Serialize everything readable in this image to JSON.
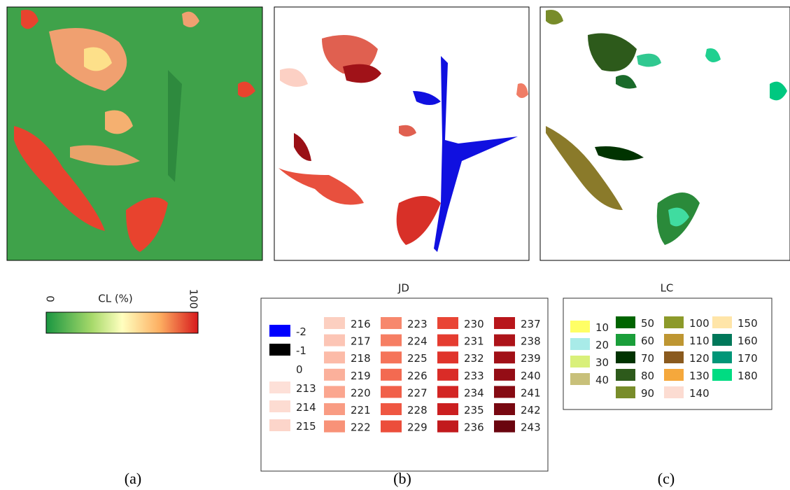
{
  "panels": [
    {
      "label": "(a)"
    },
    {
      "label": "(b)"
    },
    {
      "label": "(c)"
    }
  ],
  "cl_legend": {
    "title": "CL (%)",
    "min": 0,
    "max": 100
  },
  "jd_legend": {
    "title": "JD",
    "items": [
      {
        "label": -2,
        "color": "#0000ff"
      },
      {
        "label": -1,
        "color": "#000000"
      },
      {
        "label": 0,
        "color": "#ffffff"
      },
      {
        "label": 213,
        "color": "#fde0d8"
      },
      {
        "label": 214,
        "color": "#fddcd2"
      },
      {
        "label": 215,
        "color": "#fcd5ca"
      },
      {
        "label": 216,
        "color": "#fccfc0"
      },
      {
        "label": 217,
        "color": "#fcc5b5"
      },
      {
        "label": 218,
        "color": "#fcbba8"
      },
      {
        "label": 219,
        "color": "#fbb09b"
      },
      {
        "label": 220,
        "color": "#fba68f"
      },
      {
        "label": 221,
        "color": "#f99c83"
      },
      {
        "label": 222,
        "color": "#f89278"
      },
      {
        "label": 223,
        "color": "#f7886d"
      },
      {
        "label": 224,
        "color": "#f67e63"
      },
      {
        "label": 225,
        "color": "#f5745a"
      },
      {
        "label": 226,
        "color": "#f36a51"
      },
      {
        "label": 227,
        "color": "#f16049"
      },
      {
        "label": 228,
        "color": "#ef5742"
      },
      {
        "label": 229,
        "color": "#ec4e3b"
      },
      {
        "label": 230,
        "color": "#e94535"
      },
      {
        "label": 231,
        "color": "#e53c30"
      },
      {
        "label": 232,
        "color": "#e0342b"
      },
      {
        "label": 233,
        "color": "#da2c27"
      },
      {
        "label": 234,
        "color": "#d32523"
      },
      {
        "label": 235,
        "color": "#cb1f20"
      },
      {
        "label": 236,
        "color": "#c21a1d"
      },
      {
        "label": 237,
        "color": "#b8161b"
      },
      {
        "label": 238,
        "color": "#ad1319"
      },
      {
        "label": 239,
        "color": "#a11017"
      },
      {
        "label": 240,
        "color": "#940d15"
      },
      {
        "label": 241,
        "color": "#860b13"
      },
      {
        "label": 242,
        "color": "#780811"
      },
      {
        "label": 243,
        "color": "#6a050f"
      }
    ]
  },
  "lc_legend": {
    "title": "LC",
    "items": [
      {
        "label": 10,
        "color": "#ffff66"
      },
      {
        "label": 20,
        "color": "#a8ebe8"
      },
      {
        "label": 30,
        "color": "#d9f07a"
      },
      {
        "label": 40,
        "color": "#c8c07a"
      },
      {
        "label": 50,
        "color": "#006400"
      },
      {
        "label": 60,
        "color": "#1a9e3a"
      },
      {
        "label": 70,
        "color": "#003300"
      },
      {
        "label": 80,
        "color": "#2d5a1b"
      },
      {
        "label": 90,
        "color": "#788c2a"
      },
      {
        "label": 100,
        "color": "#8c9a2a"
      },
      {
        "label": 110,
        "color": "#be9632"
      },
      {
        "label": 120,
        "color": "#8a5a1e"
      },
      {
        "label": 130,
        "color": "#f5a83c"
      },
      {
        "label": 140,
        "color": "#fcdcd2"
      },
      {
        "label": 150,
        "color": "#ffe5a8"
      },
      {
        "label": 160,
        "color": "#00785a"
      },
      {
        "label": 170,
        "color": "#009678"
      },
      {
        "label": 180,
        "color": "#00dc82"
      }
    ]
  }
}
